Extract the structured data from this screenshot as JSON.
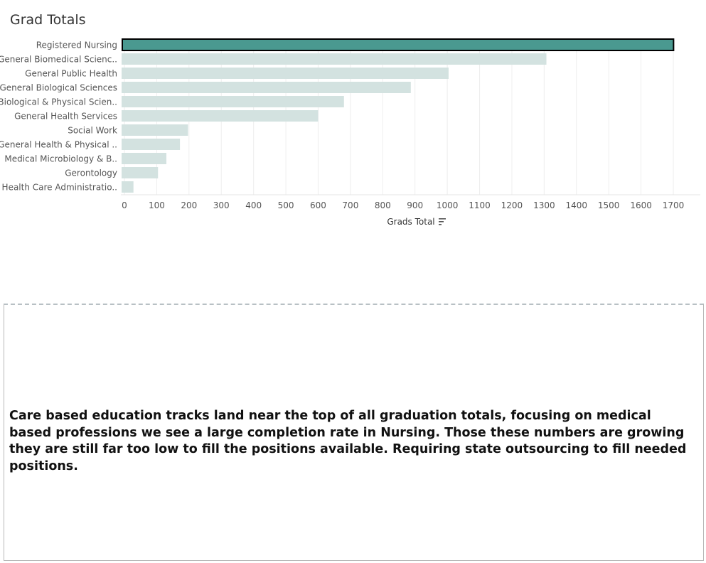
{
  "title": "Grad Totals",
  "chart_data": {
    "type": "bar",
    "orientation": "horizontal",
    "categories": [
      "Registered Nursing",
      "General Biomedical Scienc..",
      "General Public Health",
      "General Biological Sciences",
      "Biological & Physical Scien..",
      "General Health Services",
      "Social Work",
      "General Health & Physical ..",
      "Medical Microbiology & B..",
      "Gerontology",
      "Health Care Administratio.."
    ],
    "values": [
      1703,
      1307,
      1004,
      887,
      680,
      600,
      197,
      172,
      130,
      104,
      28
    ],
    "xlabel": "Grads Total",
    "ylabel": "",
    "xlim": [
      0,
      1700
    ],
    "xticks": [
      0,
      100,
      200,
      300,
      400,
      500,
      600,
      700,
      800,
      900,
      1000,
      1100,
      1200,
      1300,
      1400,
      1500,
      1600,
      1700
    ],
    "grid": true,
    "highlighted_category": "Registered Nursing",
    "colors": {
      "highlight": "#4a9990",
      "default": "#d3e2e0",
      "highlight_border": "#000000",
      "grid": "#eeeeee"
    },
    "sort_icon": "sort-descending-icon"
  },
  "description": {
    "text": "Care based education tracks land near the top of all graduation totals, focusing on medical based professions we see a large completion rate in Nursing. Those these numbers are growing they are still far too low to fill the positions available. Requiring state outsourcing to fill needed positions."
  }
}
